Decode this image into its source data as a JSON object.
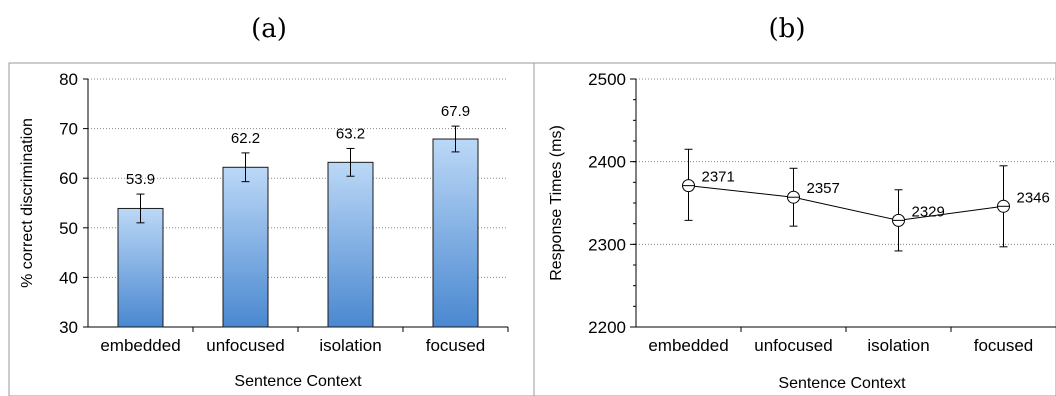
{
  "panels": {
    "a_label": "(a)",
    "b_label": "(b)"
  },
  "chart_data": [
    {
      "type": "bar",
      "categories": [
        "embedded",
        "unfocused",
        "isolation",
        "focused"
      ],
      "values": [
        53.9,
        62.2,
        63.2,
        67.9
      ],
      "value_labels": [
        "53.9",
        "62.2",
        "63.2",
        "67.9"
      ],
      "error_low": [
        51.0,
        59.3,
        60.4,
        65.3
      ],
      "error_high": [
        56.8,
        65.1,
        66.0,
        70.5
      ],
      "title": "",
      "xlabel": "Sentence Context",
      "ylabel": "% correct discrimination",
      "ylim": [
        30,
        80
      ],
      "yticks": [
        "30",
        "40",
        "50",
        "60",
        "70",
        "80"
      ],
      "grid": "horizontal dotted",
      "bar_color_top": "#bcd8f7",
      "bar_color_bottom": "#4a88d0"
    },
    {
      "type": "line",
      "categories": [
        "embedded",
        "unfocused",
        "isolation",
        "focused"
      ],
      "values": [
        2371,
        2357,
        2329,
        2346
      ],
      "value_labels": [
        "2371",
        "2357",
        "2329",
        "2346"
      ],
      "error_low": [
        2329,
        2322,
        2292,
        2297
      ],
      "error_high": [
        2415,
        2392,
        2366,
        2395
      ],
      "title": "",
      "xlabel": "Sentence Context",
      "ylabel": "Response Times (ms)",
      "ylim": [
        2200,
        2500
      ],
      "yticks": [
        "2200",
        "2300",
        "2400",
        "2500"
      ],
      "grid": "horizontal dotted",
      "marker": "open-circle-crosshair"
    }
  ]
}
